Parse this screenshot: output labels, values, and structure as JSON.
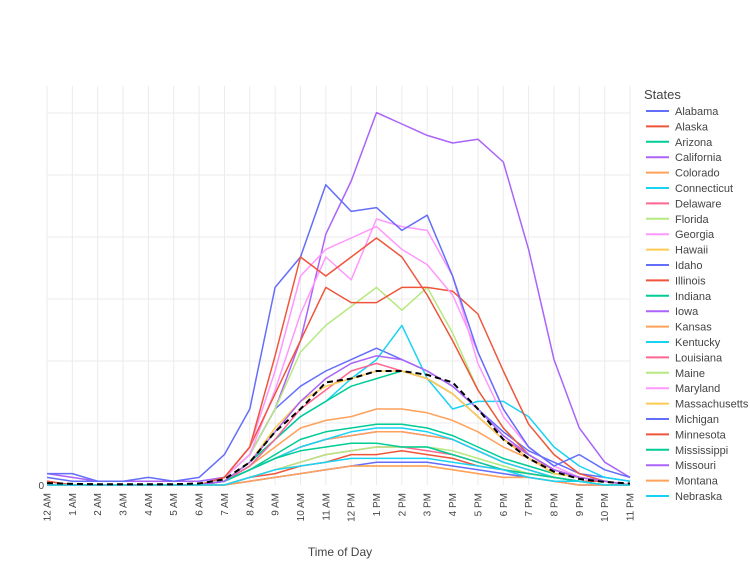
{
  "chart_data": {
    "type": "line",
    "title": "",
    "xlabel": "Time of Day",
    "ylabel": "",
    "y_tick_labels": [
      "0"
    ],
    "ylim": [
      0,
      1
    ],
    "grid": true,
    "legend_title": "States",
    "legend_position": "right",
    "categories": [
      "12 AM",
      "1 AM",
      "2 AM",
      "3 AM",
      "4 AM",
      "5 AM",
      "6 AM",
      "7 AM",
      "8 AM",
      "9 AM",
      "10 AM",
      "11 AM",
      "12 PM",
      "1 PM",
      "2 PM",
      "3 PM",
      "4 PM",
      "5 PM",
      "6 PM",
      "7 PM",
      "8 PM",
      "9 PM",
      "10 PM",
      "11 PM"
    ],
    "series": [
      {
        "name": "Alabama",
        "color": "#636efa",
        "values": [
          0.02,
          0.01,
          0.01,
          0.01,
          0.01,
          0.01,
          0.01,
          0.02,
          0.08,
          0.2,
          0.26,
          0.3,
          0.33,
          0.36,
          0.33,
          0.3,
          0.26,
          0.2,
          0.14,
          0.09,
          0.06,
          0.03,
          0.02,
          0.01
        ]
      },
      {
        "name": "Alaska",
        "color": "#ef553b",
        "values": [
          0,
          0,
          0,
          0,
          0,
          0,
          0,
          0,
          0.02,
          0.03,
          0.05,
          0.06,
          0.08,
          0.08,
          0.09,
          0.08,
          0.07,
          0.05,
          0.04,
          0.03,
          0.02,
          0.01,
          0.01,
          0
        ]
      },
      {
        "name": "Arizona",
        "color": "#00cc96",
        "values": [
          0,
          0,
          0,
          0,
          0,
          0,
          0,
          0.01,
          0.04,
          0.08,
          0.12,
          0.14,
          0.15,
          0.16,
          0.16,
          0.15,
          0.13,
          0.1,
          0.07,
          0.05,
          0.03,
          0.02,
          0.01,
          0
        ]
      },
      {
        "name": "California",
        "color": "#ab63fa",
        "values": [
          0.03,
          0.02,
          0.01,
          0.01,
          0.01,
          0.01,
          0.01,
          0.02,
          0.08,
          0.2,
          0.38,
          0.66,
          0.8,
          0.98,
          0.95,
          0.92,
          0.9,
          0.91,
          0.85,
          0.62,
          0.33,
          0.15,
          0.06,
          0.02
        ]
      },
      {
        "name": "Colorado",
        "color": "#ffa15a",
        "values": [
          0,
          0,
          0,
          0,
          0,
          0,
          0,
          0.01,
          0.05,
          0.1,
          0.15,
          0.17,
          0.18,
          0.2,
          0.2,
          0.19,
          0.17,
          0.14,
          0.1,
          0.07,
          0.04,
          0.02,
          0.01,
          0
        ]
      },
      {
        "name": "Connecticut",
        "color": "#19d3f3",
        "values": [
          0,
          0,
          0,
          0,
          0,
          0,
          0,
          0.01,
          0.05,
          0.12,
          0.18,
          0.22,
          0.28,
          0.33,
          0.42,
          0.28,
          0.2,
          0.22,
          0.22,
          0.18,
          0.1,
          0.05,
          0.02,
          0.01
        ]
      },
      {
        "name": "Delaware",
        "color": "#ff6692",
        "values": [
          0,
          0,
          0,
          0,
          0,
          0,
          0,
          0,
          0.02,
          0.04,
          0.06,
          0.08,
          0.09,
          0.1,
          0.1,
          0.09,
          0.08,
          0.06,
          0.04,
          0.03,
          0.02,
          0.01,
          0,
          0
        ]
      },
      {
        "name": "Florida",
        "color": "#b6e880",
        "values": [
          0.01,
          0,
          0,
          0,
          0,
          0,
          0,
          0.02,
          0.08,
          0.2,
          0.35,
          0.42,
          0.47,
          0.52,
          0.46,
          0.52,
          0.4,
          0.25,
          0.15,
          0.08,
          0.04,
          0.02,
          0.01,
          0
        ]
      },
      {
        "name": "Georgia",
        "color": "#ff97ff",
        "values": [
          0.01,
          0,
          0,
          0,
          0,
          0,
          0,
          0.02,
          0.08,
          0.25,
          0.45,
          0.6,
          0.54,
          0.7,
          0.68,
          0.67,
          0.55,
          0.32,
          0.18,
          0.1,
          0.05,
          0.02,
          0.01,
          0
        ]
      },
      {
        "name": "Hawaii",
        "color": "#fecb52",
        "values": [
          0,
          0,
          0,
          0,
          0,
          0,
          0,
          0,
          0.01,
          0.02,
          0.03,
          0.04,
          0.05,
          0.05,
          0.05,
          0.05,
          0.04,
          0.03,
          0.02,
          0.02,
          0.01,
          0,
          0,
          0
        ]
      },
      {
        "name": "Idaho",
        "color": "#636efa",
        "values": [
          0,
          0,
          0,
          0,
          0,
          0,
          0,
          0,
          0.01,
          0.02,
          0.03,
          0.04,
          0.05,
          0.06,
          0.06,
          0.06,
          0.05,
          0.04,
          0.03,
          0.02,
          0.01,
          0,
          0,
          0
        ]
      },
      {
        "name": "Illinois",
        "color": "#ef553b",
        "values": [
          0.01,
          0,
          0,
          0,
          0,
          0,
          0,
          0.02,
          0.1,
          0.24,
          0.38,
          0.52,
          0.48,
          0.48,
          0.52,
          0.52,
          0.51,
          0.45,
          0.3,
          0.16,
          0.08,
          0.03,
          0.01,
          0
        ]
      },
      {
        "name": "Indiana",
        "color": "#00cc96",
        "values": [
          0,
          0,
          0,
          0,
          0,
          0,
          0,
          0.01,
          0.06,
          0.12,
          0.18,
          0.22,
          0.26,
          0.28,
          0.3,
          0.28,
          0.24,
          0.18,
          0.12,
          0.08,
          0.04,
          0.02,
          0.01,
          0
        ]
      },
      {
        "name": "Iowa",
        "color": "#ab63fa",
        "values": [
          0,
          0,
          0,
          0,
          0,
          0,
          0,
          0.01,
          0.04,
          0.07,
          0.1,
          0.12,
          0.13,
          0.14,
          0.14,
          0.13,
          0.12,
          0.09,
          0.06,
          0.04,
          0.02,
          0.01,
          0,
          0
        ]
      },
      {
        "name": "Kansas",
        "color": "#ffa15a",
        "values": [
          0,
          0,
          0,
          0,
          0,
          0,
          0,
          0.01,
          0.04,
          0.07,
          0.1,
          0.12,
          0.13,
          0.14,
          0.14,
          0.13,
          0.12,
          0.09,
          0.06,
          0.04,
          0.02,
          0.01,
          0,
          0
        ]
      },
      {
        "name": "Kentucky",
        "color": "#19d3f3",
        "values": [
          0,
          0,
          0,
          0,
          0,
          0,
          0,
          0.01,
          0.04,
          0.07,
          0.1,
          0.12,
          0.14,
          0.15,
          0.15,
          0.14,
          0.12,
          0.09,
          0.06,
          0.04,
          0.02,
          0.01,
          0,
          0
        ]
      },
      {
        "name": "Louisiana",
        "color": "#ff6692",
        "values": [
          0,
          0,
          0,
          0,
          0,
          0,
          0,
          0.01,
          0.05,
          0.12,
          0.2,
          0.25,
          0.3,
          0.32,
          0.3,
          0.28,
          0.24,
          0.18,
          0.12,
          0.08,
          0.04,
          0.02,
          0.01,
          0
        ]
      },
      {
        "name": "Maine",
        "color": "#b6e880",
        "values": [
          0,
          0,
          0,
          0,
          0,
          0,
          0,
          0,
          0.02,
          0.04,
          0.06,
          0.08,
          0.09,
          0.1,
          0.1,
          0.1,
          0.09,
          0.07,
          0.05,
          0.03,
          0.02,
          0.01,
          0,
          0
        ]
      },
      {
        "name": "Maryland",
        "color": "#ff97ff",
        "values": [
          0,
          0,
          0,
          0,
          0,
          0,
          0,
          0.02,
          0.1,
          0.3,
          0.55,
          0.62,
          0.65,
          0.68,
          0.62,
          0.58,
          0.5,
          0.35,
          0.2,
          0.1,
          0.05,
          0.02,
          0.01,
          0
        ]
      },
      {
        "name": "Massachusetts",
        "color": "#fecb52",
        "values": [
          0,
          0,
          0,
          0,
          0,
          0,
          0,
          0.01,
          0.06,
          0.15,
          0.22,
          0.26,
          0.28,
          0.3,
          0.3,
          0.28,
          0.24,
          0.18,
          0.12,
          0.07,
          0.03,
          0.02,
          0.01,
          0
        ]
      },
      {
        "name": "Michigan",
        "color": "#636efa",
        "values": [
          0.03,
          0.03,
          0.01,
          0.01,
          0.02,
          0.01,
          0.02,
          0.08,
          0.2,
          0.52,
          0.6,
          0.79,
          0.72,
          0.73,
          0.67,
          0.71,
          0.55,
          0.35,
          0.2,
          0.1,
          0.05,
          0.08,
          0.04,
          0.02
        ]
      },
      {
        "name": "Minnesota",
        "color": "#ef553b",
        "values": [
          0.01,
          0,
          0,
          0,
          0,
          0,
          0,
          0.02,
          0.1,
          0.34,
          0.6,
          0.55,
          0.6,
          0.65,
          0.6,
          0.5,
          0.38,
          0.25,
          0.15,
          0.08,
          0.04,
          0.02,
          0.01,
          0
        ]
      },
      {
        "name": "Mississippi",
        "color": "#00cc96",
        "values": [
          0,
          0,
          0,
          0,
          0,
          0,
          0,
          0.01,
          0.04,
          0.07,
          0.09,
          0.1,
          0.11,
          0.11,
          0.1,
          0.1,
          0.08,
          0.06,
          0.04,
          0.03,
          0.02,
          0.01,
          0,
          0
        ]
      },
      {
        "name": "Missouri",
        "color": "#ab63fa",
        "values": [
          0,
          0,
          0,
          0,
          0,
          0,
          0,
          0.01,
          0.06,
          0.14,
          0.22,
          0.28,
          0.32,
          0.34,
          0.33,
          0.3,
          0.26,
          0.2,
          0.13,
          0.08,
          0.04,
          0.02,
          0.01,
          0
        ]
      },
      {
        "name": "Montana",
        "color": "#ffa15a",
        "values": [
          0,
          0,
          0,
          0,
          0,
          0,
          0,
          0,
          0.01,
          0.02,
          0.03,
          0.04,
          0.05,
          0.05,
          0.05,
          0.05,
          0.04,
          0.03,
          0.02,
          0.02,
          0.01,
          0,
          0,
          0
        ]
      },
      {
        "name": "Nebraska",
        "color": "#19d3f3",
        "values": [
          0,
          0,
          0,
          0,
          0,
          0,
          0,
          0,
          0.02,
          0.04,
          0.05,
          0.06,
          0.07,
          0.07,
          0.07,
          0.07,
          0.06,
          0.05,
          0.04,
          0.02,
          0.01,
          0.01,
          0,
          0
        ]
      },
      {
        "name": "",
        "color": "#000000",
        "dash": true,
        "values": [
          0.005,
          0.003,
          0.002,
          0.002,
          0.002,
          0.002,
          0.004,
          0.015,
          0.06,
          0.14,
          0.2,
          0.27,
          0.28,
          0.3,
          0.3,
          0.29,
          0.27,
          0.2,
          0.12,
          0.07,
          0.035,
          0.016,
          0.008,
          0.004
        ]
      }
    ]
  }
}
